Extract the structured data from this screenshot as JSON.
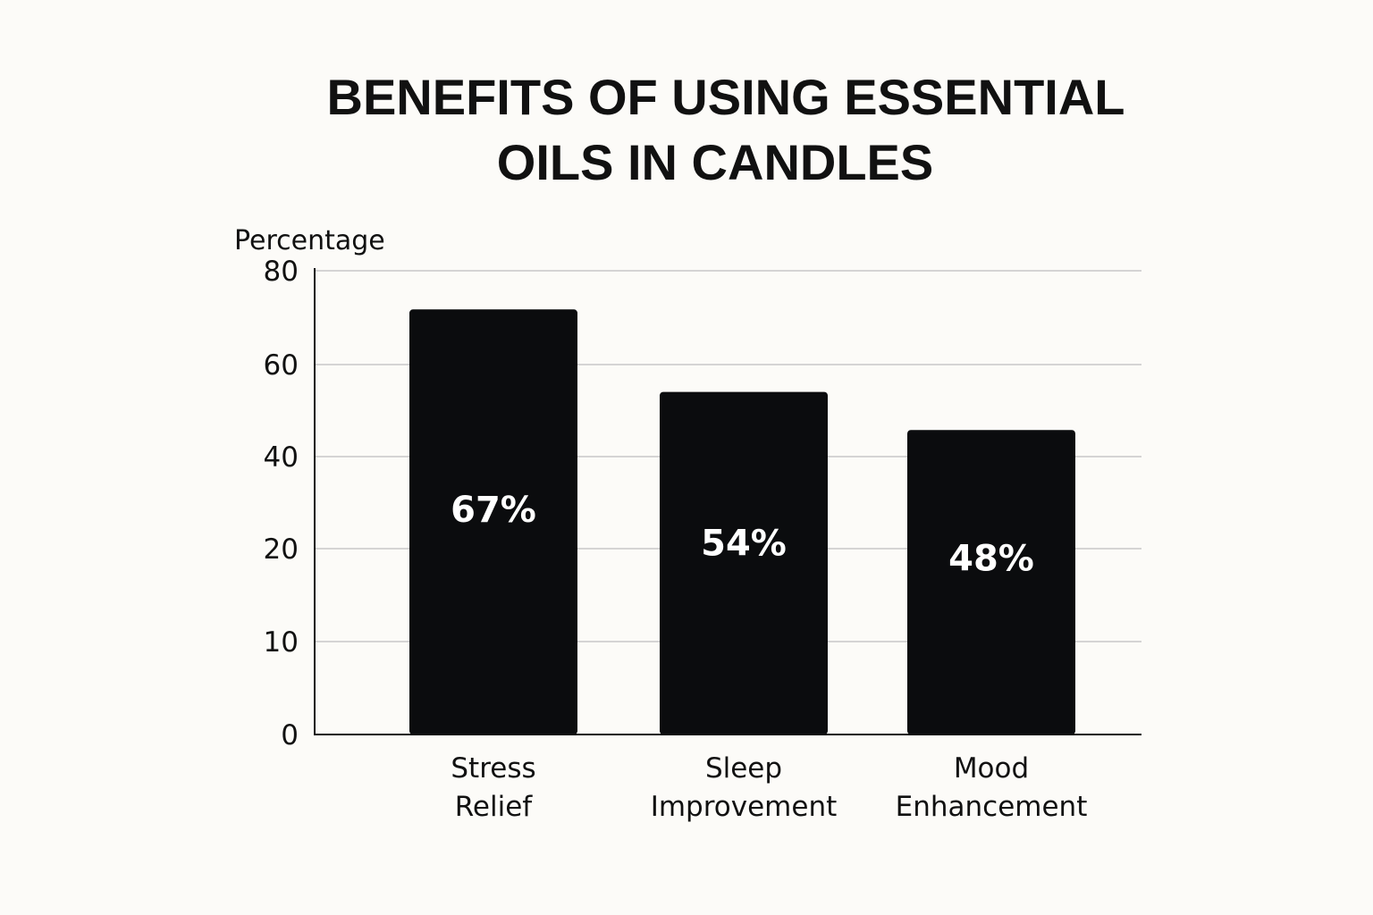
{
  "chart_data": {
    "type": "bar",
    "title_lines": [
      "BENEFITS OF USING ESSENTIAL",
      "OILS IN CANDLES"
    ],
    "ylabel": "Percentage",
    "xlabel": "",
    "ylim": [
      0,
      80
    ],
    "yticks": [
      {
        "value": 0,
        "label": "0"
      },
      {
        "value": 10,
        "label": "10"
      },
      {
        "value": 20,
        "label": "20"
      },
      {
        "value": 40,
        "label": "40"
      },
      {
        "value": 60,
        "label": "60"
      },
      {
        "value": 80,
        "label": "80"
      }
    ],
    "categories": [
      {
        "lines": [
          "Stress",
          "Relief"
        ]
      },
      {
        "lines": [
          "Sleep",
          "Improvement"
        ]
      },
      {
        "lines": [
          "Mood",
          "Enhancement"
        ]
      }
    ],
    "values": [
      67,
      54,
      48
    ],
    "data_labels": [
      "67%",
      "54%",
      "48%"
    ],
    "grid": true,
    "legend": "none",
    "colors": {
      "bar": "#0b0c0e",
      "grid": "#c8c8c8",
      "axis": "#111111",
      "background": "#fcfbf8",
      "text": "#111111",
      "data_label": "#ffffff"
    }
  }
}
